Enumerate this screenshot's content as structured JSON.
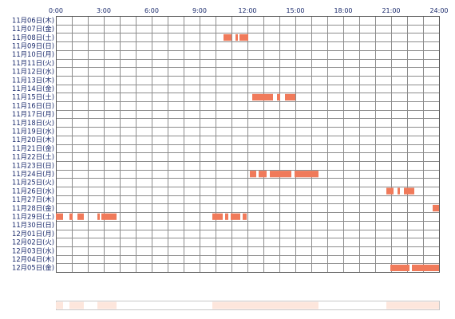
{
  "chart_data": {
    "type": "heatmap",
    "x_ticks": [
      "0:00",
      "3:00",
      "6:00",
      "9:00",
      "12:00",
      "15:00",
      "18:00",
      "21:00",
      "24:00"
    ],
    "x_range_hours": [
      0,
      24
    ],
    "grid": true,
    "rows": [
      {
        "label": "11月06日(木)",
        "segments": []
      },
      {
        "label": "11月07日(金)",
        "segments": []
      },
      {
        "label": "11月08日(土)",
        "segments": [
          [
            10.5,
            11.0
          ],
          [
            11.25,
            11.4
          ],
          [
            11.5,
            12.05
          ]
        ]
      },
      {
        "label": "11月09日(日)",
        "segments": []
      },
      {
        "label": "11月10日(月)",
        "segments": []
      },
      {
        "label": "11月11日(火)",
        "segments": []
      },
      {
        "label": "11月12日(水)",
        "segments": []
      },
      {
        "label": "11月13日(木)",
        "segments": []
      },
      {
        "label": "11月14日(金)",
        "segments": []
      },
      {
        "label": "11月15日(土)",
        "segments": [
          [
            12.3,
            13.6
          ],
          [
            13.85,
            14.05
          ],
          [
            14.35,
            15.0
          ]
        ]
      },
      {
        "label": "11月16日(日)",
        "segments": []
      },
      {
        "label": "11月17日(月)",
        "segments": []
      },
      {
        "label": "11月18日(火)",
        "segments": []
      },
      {
        "label": "11月19日(水)",
        "segments": []
      },
      {
        "label": "11月20日(木)",
        "segments": []
      },
      {
        "label": "11月21日(金)",
        "segments": []
      },
      {
        "label": "11月22日(土)",
        "segments": []
      },
      {
        "label": "11月23日(日)",
        "segments": []
      },
      {
        "label": "11月24日(月)",
        "segments": [
          [
            12.15,
            12.55
          ],
          [
            12.7,
            13.2
          ],
          [
            13.4,
            14.75
          ],
          [
            14.95,
            16.45
          ]
        ]
      },
      {
        "label": "11月25日(火)",
        "segments": []
      },
      {
        "label": "11月26日(水)",
        "segments": [
          [
            20.7,
            21.15
          ],
          [
            21.4,
            21.55
          ],
          [
            21.8,
            22.45
          ]
        ]
      },
      {
        "label": "11月27日(木)",
        "segments": []
      },
      {
        "label": "11月28日(金)",
        "segments": [
          [
            23.6,
            24.0
          ]
        ]
      },
      {
        "label": "11月29日(土)",
        "segments": [
          [
            0.0,
            0.45
          ],
          [
            0.85,
            1.05
          ],
          [
            1.35,
            1.75
          ],
          [
            2.6,
            2.75
          ],
          [
            2.85,
            3.8
          ],
          [
            9.8,
            10.45
          ],
          [
            10.6,
            10.8
          ],
          [
            10.95,
            11.55
          ],
          [
            11.7,
            11.95
          ]
        ]
      },
      {
        "label": "11月30日(日)",
        "segments": []
      },
      {
        "label": "12月01日(月)",
        "segments": []
      },
      {
        "label": "12月02日(火)",
        "segments": []
      },
      {
        "label": "12月03日(水)",
        "segments": []
      },
      {
        "label": "12月04日(木)",
        "segments": []
      },
      {
        "label": "12月05日(金)",
        "segments": [
          [
            20.95,
            22.15
          ],
          [
            22.3,
            24.0
          ]
        ]
      }
    ],
    "colors": {
      "segment": "#f07a5a",
      "grid": "#8c8c8c",
      "border": "#555555",
      "summary_fill": "#fde6dc",
      "summary_border": "#c8c8c8",
      "label": "#1a2a6c"
    }
  }
}
